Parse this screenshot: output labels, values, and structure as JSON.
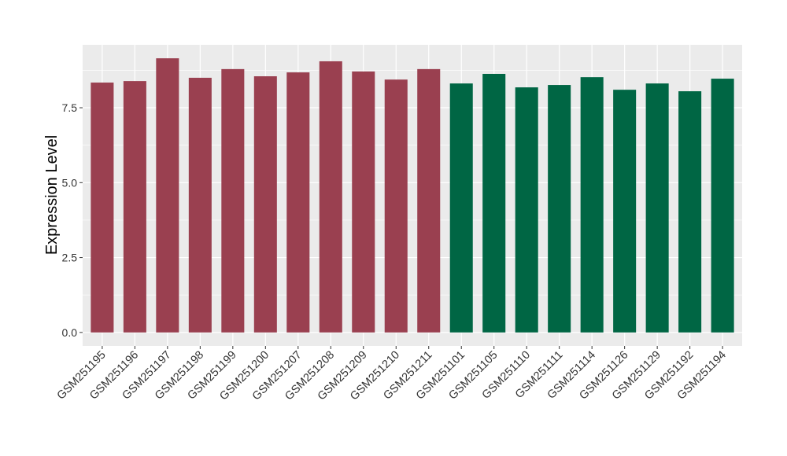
{
  "chart_data": {
    "type": "bar",
    "title": "",
    "xlabel": "",
    "ylabel": "Expression Level",
    "ylim": [
      -0.45,
      9.6
    ],
    "yticks": [
      "0.0",
      "2.5",
      "5.0",
      "7.5"
    ],
    "grid": true,
    "legend": "none",
    "categories": [
      "GSM251195",
      "GSM251196",
      "GSM251197",
      "GSM251198",
      "GSM251199",
      "GSM251200",
      "GSM251207",
      "GSM251208",
      "GSM251209",
      "GSM251210",
      "GSM251211",
      "GSM251101",
      "GSM251105",
      "GSM251110",
      "GSM251111",
      "GSM251114",
      "GSM251126",
      "GSM251129",
      "GSM251192",
      "GSM251194"
    ],
    "values": [
      8.34,
      8.39,
      9.15,
      8.5,
      8.79,
      8.55,
      8.68,
      9.05,
      8.71,
      8.44,
      8.79,
      8.31,
      8.63,
      8.18,
      8.26,
      8.52,
      8.1,
      8.31,
      8.05,
      8.47
    ],
    "group_colors": [
      "#9a4050",
      "#9a4050",
      "#9a4050",
      "#9a4050",
      "#9a4050",
      "#9a4050",
      "#9a4050",
      "#9a4050",
      "#9a4050",
      "#9a4050",
      "#9a4050",
      "#006644",
      "#006644",
      "#006644",
      "#006644",
      "#006644",
      "#006644",
      "#006644",
      "#006644",
      "#006644"
    ],
    "panel_background": "#ebebeb"
  }
}
